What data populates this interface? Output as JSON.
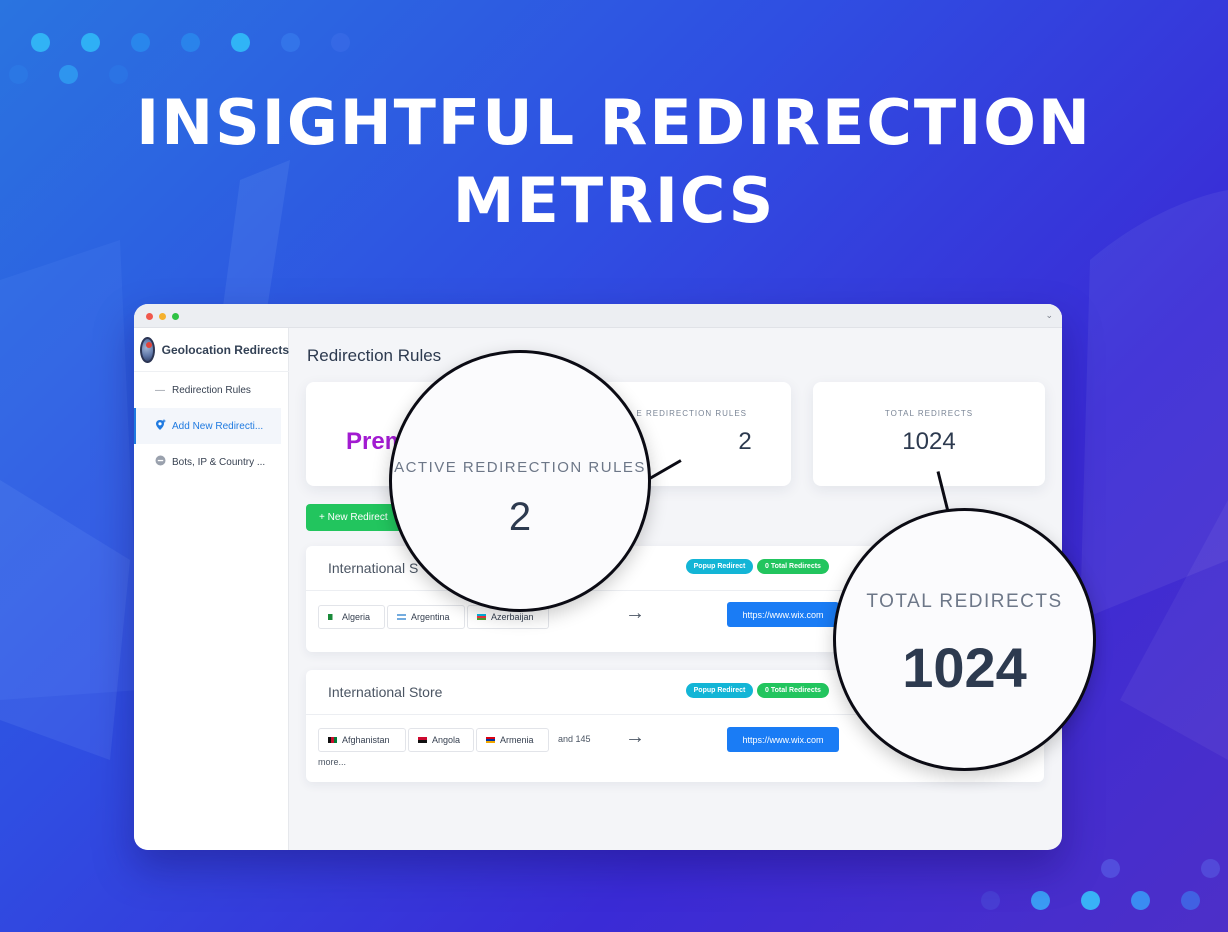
{
  "hero": {
    "line1": "INSIGHTFUL REDIRECTION",
    "line2": "METRICS"
  },
  "app": {
    "name": "Geolocation Redirects",
    "nav": [
      {
        "label": "Redirection Rules",
        "icon": "pulse-icon"
      },
      {
        "label": "Add New Redirecti...",
        "icon": "location-pin-plus-icon"
      },
      {
        "label": "Bots, IP & Country ...",
        "icon": "minus-circle-icon"
      }
    ]
  },
  "main": {
    "title": "Redirection Rules",
    "stats": {
      "plan_label": "YO",
      "plan_value": "Prem",
      "active_label": "E REDIRECTION RULES",
      "active_value": "2",
      "total_label": "TOTAL REDIRECTS",
      "total_value": "1024"
    },
    "new_button": "+ New Redirect",
    "rules": [
      {
        "name": "International S",
        "badges": [
          "Popup Redirect",
          "0 Total Redirects"
        ],
        "countries": [
          "Algeria",
          "Argentina",
          "Azerbaijan"
        ],
        "more": "",
        "url": "https://www.wix.com"
      },
      {
        "name": "International Store",
        "badges": [
          "Popup Redirect",
          "0 Total Redirects"
        ],
        "countries": [
          "Afghanistan",
          "Angola",
          "Armenia"
        ],
        "more_line1": "and 145",
        "more_line2": "more...",
        "url": "https://www.wix.com"
      }
    ]
  },
  "callouts": {
    "active": {
      "label": "ACTIVE REDIRECTION RULES",
      "value": "2"
    },
    "total": {
      "label": "TOTAL REDIRECTS",
      "value": "1024"
    }
  },
  "colors": {
    "brand_blue": "#1a7cf5",
    "success_green": "#22c55e",
    "popup_cyan": "#13b5d6",
    "plan_purple": "#a21bd1"
  }
}
